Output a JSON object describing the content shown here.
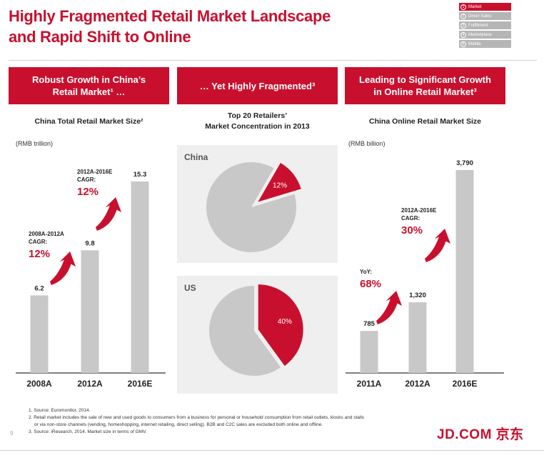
{
  "title": {
    "line1": "Highly Fragmented Retail Market Landscape",
    "line2": "and Rapid Shift to Online"
  },
  "nav": [
    {
      "num": "1",
      "label": "Market",
      "active": true
    },
    {
      "num": "2",
      "label": "Direct Sales",
      "active": false
    },
    {
      "num": "3",
      "label": "Fulfillment",
      "active": false
    },
    {
      "num": "4",
      "label": "Marketplace",
      "active": false
    },
    {
      "num": "5",
      "label": "Mobile",
      "active": false
    }
  ],
  "panels": [
    {
      "head_line1": "Robust Growth in China’s",
      "head_line2": "Retail Market¹ …",
      "sub_line1": "China Total Retail Market Size²",
      "sub_line2": "",
      "unit": "(RMB trillion)"
    },
    {
      "head_line1": "… Yet Highly Fragmented³",
      "head_line2": "",
      "sub_line1": "Top 20 Retailers’",
      "sub_line2": "Market Concentration in 2013",
      "unit": ""
    },
    {
      "head_line1": "Leading to Significant Growth",
      "head_line2": "in Online Retail Market³",
      "sub_line1": "China Online Retail Market Size",
      "sub_line2": "",
      "unit": "(RMB billion)"
    }
  ],
  "chart_data": [
    {
      "type": "bar",
      "title": "China Total Retail Market Size",
      "ylabel": "(RMB trillion)",
      "categories": [
        "2008A",
        "2012A",
        "2016E"
      ],
      "values": [
        6.2,
        9.8,
        15.3
      ],
      "value_labels": [
        "6.2",
        "9.8",
        "15.3"
      ],
      "ylim": [
        0,
        15.3
      ],
      "annotations": [
        {
          "label_line1": "2008A-2012A",
          "label_line2": "CAGR:",
          "value": "12%"
        },
        {
          "label_line1": "2012A-2016E",
          "label_line2": "CAGR:",
          "value": "12%"
        }
      ]
    },
    {
      "type": "pie",
      "title": "Top 20 Retailers’ Market Concentration in 2013",
      "pies": [
        {
          "name": "China",
          "share": 12,
          "share_label": "12%"
        },
        {
          "name": "US",
          "share": 40,
          "share_label": "40%"
        }
      ]
    },
    {
      "type": "bar",
      "title": "China Online Retail Market Size",
      "ylabel": "(RMB billion)",
      "categories": [
        "2011A",
        "2012A",
        "2016E"
      ],
      "values": [
        785,
        1320,
        3790
      ],
      "value_labels": [
        "785",
        "1,320",
        "3,790"
      ],
      "ylim": [
        0,
        3790
      ],
      "annotations": [
        {
          "label_line1": "YoY:",
          "label_line2": "",
          "value": "68%"
        },
        {
          "label_line1": "2012A-2016E",
          "label_line2": "CAGR:",
          "value": "30%"
        }
      ]
    }
  ],
  "colors": {
    "accent": "#c8102e",
    "bar": "#c8c8c8",
    "pie_base": "#c8c8c8",
    "axis": "#555555"
  },
  "footnotes": {
    "f1": "1. Source: Euromonitor, 2014.",
    "f2a": "2. Retail market includes the sale of new and used goods to consumers from a business for personal or household consumption from retail outlets, kiosks and stalls",
    "f2b": "or via non-store channels (vending, homeshopping, internet retailing, direct selling). B2B and C2C sales are excluded both online and offline.",
    "f3": "3. Source: iResearch, 2014. Market size in terms of GMV."
  },
  "page_number": "9",
  "brand": "JD.COM 京东"
}
